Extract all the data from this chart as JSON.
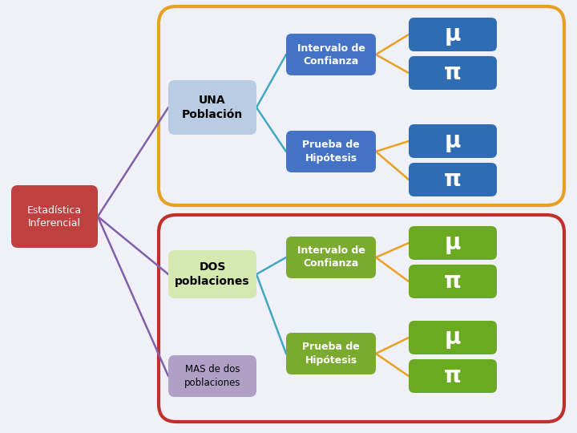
{
  "bg_color": "#f0f0f8",
  "top_frame_color": "#E8A020",
  "bottom_frame_color": "#C0302A",
  "estadistica_box": {
    "text": "Estadística\nInferencial",
    "color": "#C04040",
    "text_color": "#ffffff"
  },
  "una_box": {
    "text": "UNA\nPoblación",
    "color": "#B8CCE4",
    "text_color": "#000000"
  },
  "dos_box": {
    "text": "DOS\npoblaciones",
    "color": "#D4E8B0",
    "text_color": "#000000"
  },
  "mas_box": {
    "text": "MAS de dos\npoblaciones",
    "color": "#B0A0C8",
    "text_color": "#000000"
  },
  "top_mid1": {
    "text": "Intervalo de\nConfianza",
    "color": "#4472C4",
    "text_color": "#ffffff"
  },
  "top_mid2": {
    "text": "Prueba de\nHipótesis",
    "color": "#4472C4",
    "text_color": "#ffffff"
  },
  "bot_mid1": {
    "text": "Intervalo de\nConfianza",
    "color": "#7AAA30",
    "text_color": "#ffffff"
  },
  "bot_mid2": {
    "text": "Prueba de\nHipótesis",
    "color": "#7AAA30",
    "text_color": "#ffffff"
  },
  "blue_leaf_color": "#2E6DB4",
  "green_leaf_color": "#6AAA20",
  "mu_symbol": "μ",
  "pi_symbol": "π",
  "connector_color_orange": "#E8A020",
  "connector_color_cyan": "#40A8C0",
  "connector_color_purple": "#8060A8"
}
